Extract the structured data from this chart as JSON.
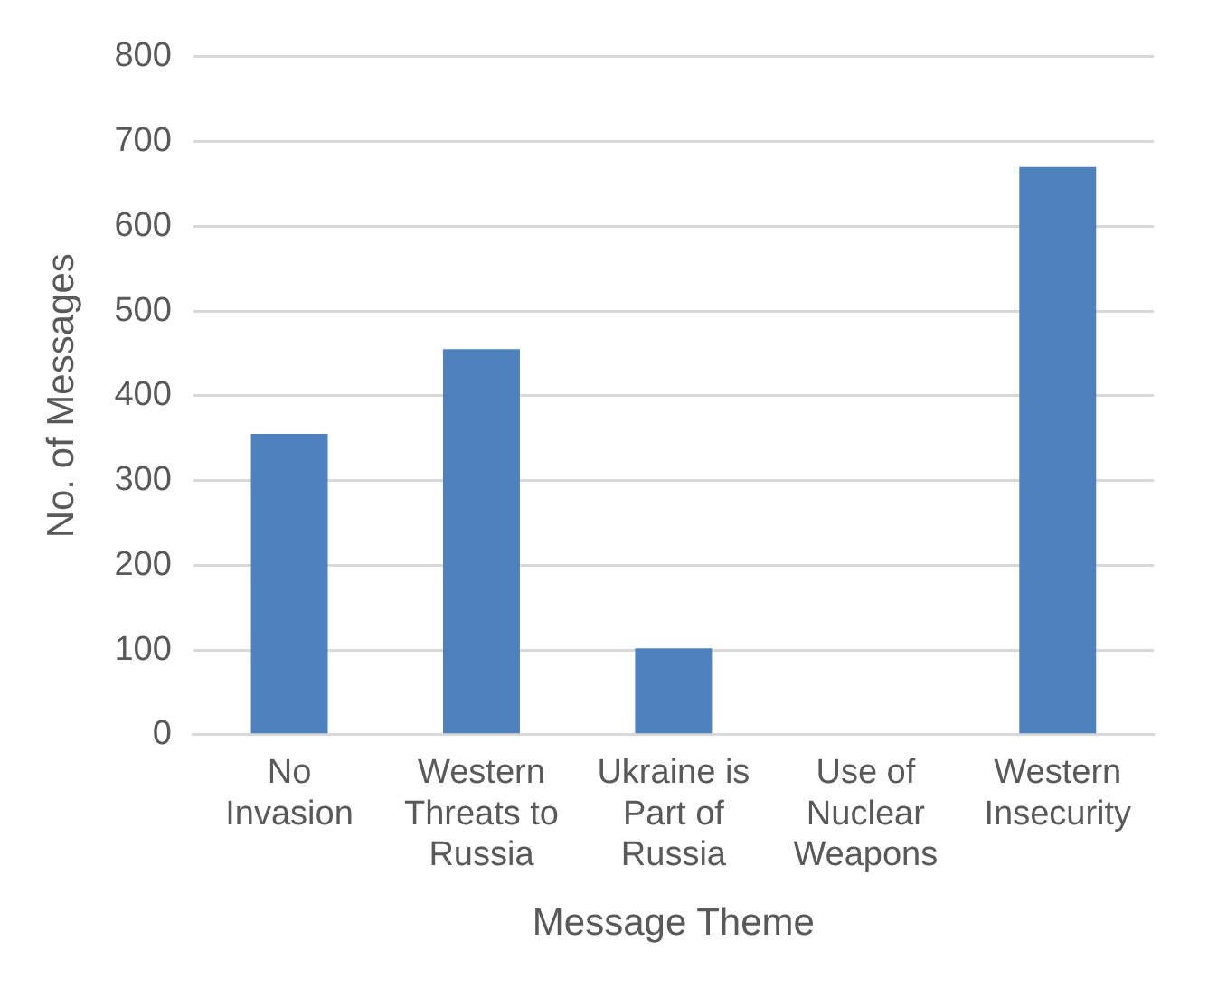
{
  "chart_data": {
    "type": "bar",
    "categories": [
      "No Invasion",
      "Western Threats to Russia",
      "Ukraine is Part of Russia",
      "Use of Nuclear Weapons",
      "Western Insecurity"
    ],
    "values": [
      355,
      455,
      102,
      0,
      670
    ],
    "color": "#4f81bd",
    "xlabel": "Message Theme",
    "ylabel": "No. of Messages",
    "ylim": [
      0,
      800
    ],
    "yticks": [
      0,
      100,
      200,
      300,
      400,
      500,
      600,
      700,
      800
    ],
    "grid": "y"
  }
}
